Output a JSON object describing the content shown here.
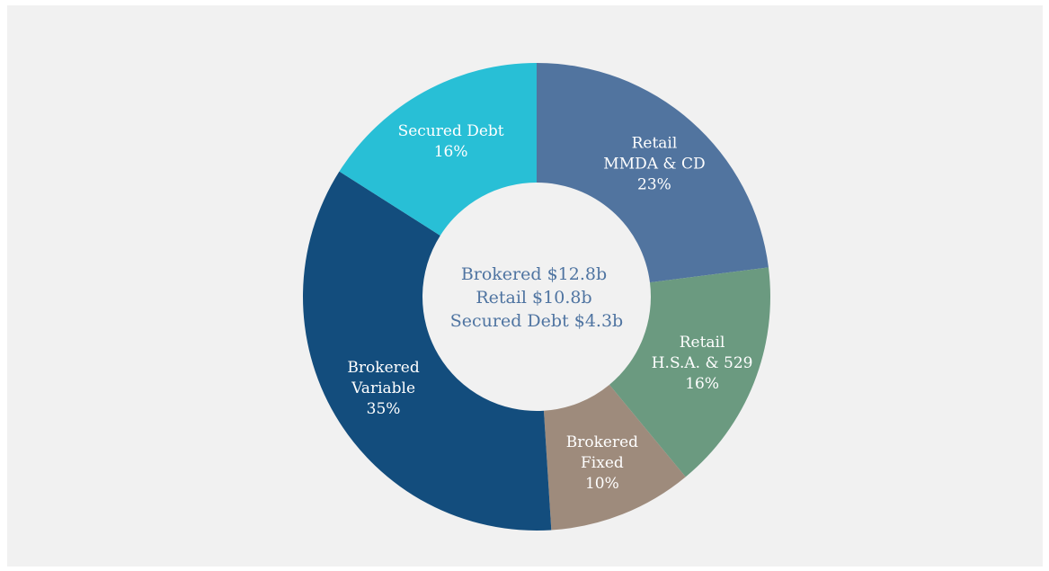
{
  "chart_data": {
    "type": "pie",
    "title": "",
    "center_text": [
      "Brokered $12.8b",
      "Retail $10.8b",
      "Secured Debt $4.3b"
    ],
    "slices": [
      {
        "label_lines": [
          "Retail",
          "MMDA & CD"
        ],
        "value": 23,
        "value_label": "23%",
        "color": "#51749f"
      },
      {
        "label_lines": [
          "Retail",
          "H.S.A. & 529"
        ],
        "value": 16,
        "value_label": "16%",
        "color": "#6b9a80"
      },
      {
        "label_lines": [
          "Brokered",
          "Fixed"
        ],
        "value": 10,
        "value_label": "10%",
        "color": "#9e8b7c"
      },
      {
        "label_lines": [
          "Brokered",
          "Variable"
        ],
        "value": 35,
        "value_label": "35%",
        "color": "#134d7d"
      },
      {
        "label_lines": [
          "Secured Debt"
        ],
        "value": 16,
        "value_label": "16%",
        "color": "#28bfd6"
      }
    ]
  }
}
